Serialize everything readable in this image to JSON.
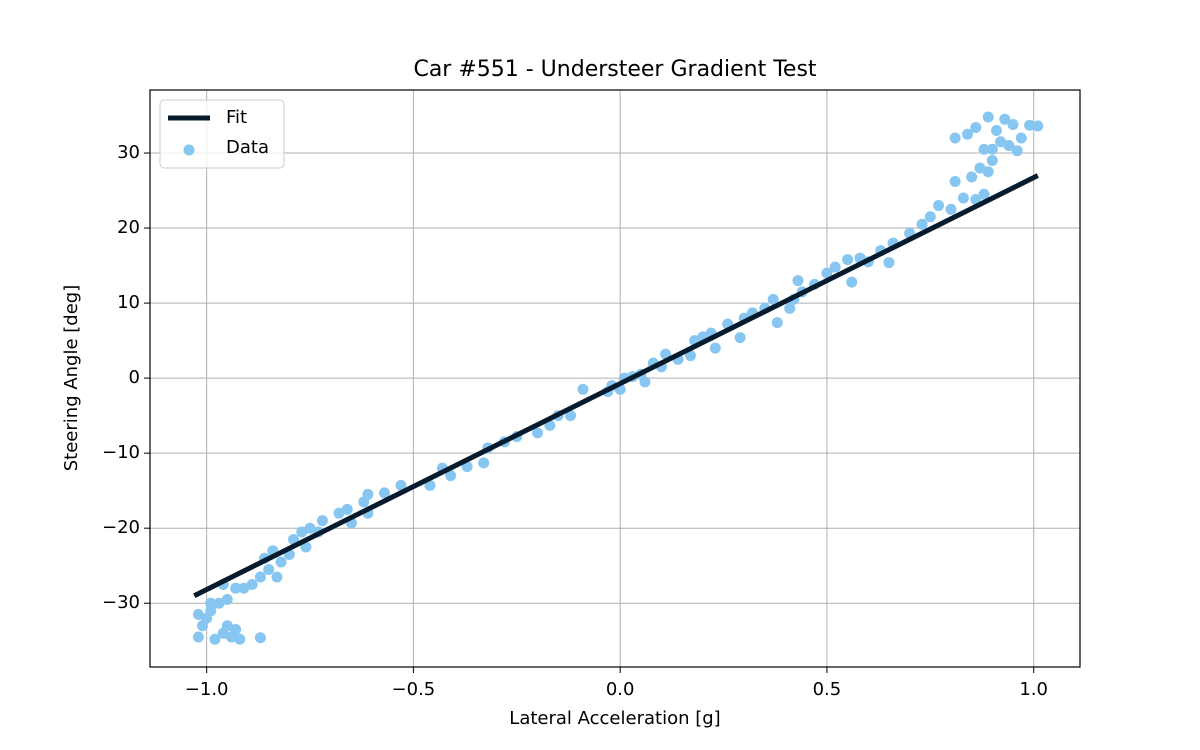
{
  "chart_data": {
    "type": "scatter",
    "title": "Car #551 - Understeer Gradient Test",
    "x_label": "Lateral Acceleration [g]",
    "y_label": "Steering Angle [deg]",
    "xlim": [
      -1.137,
      1.112
    ],
    "ylim": [
      -38.5,
      38.4
    ],
    "xticks": [
      {
        "value": -1.0,
        "label": "−1.0"
      },
      {
        "value": -0.5,
        "label": "−0.5"
      },
      {
        "value": 0,
        "label": "0.0"
      },
      0.5,
      {
        "value": 1.0,
        "label": "1.0"
      }
    ],
    "yticks": [
      {
        "value": -30,
        "label": "−30"
      },
      {
        "value": -20,
        "label": "−20"
      },
      {
        "value": -10,
        "label": "−10"
      },
      0,
      10,
      20,
      30
    ],
    "grid": true,
    "legend": "upper left",
    "series": [
      {
        "name": "Fit",
        "type": "line",
        "color": "#061c2e",
        "x": [
          -1.03,
          1.01
        ],
        "values": [
          -29,
          27
        ]
      },
      {
        "name": "Data",
        "type": "scatter",
        "color": "#87c6f0",
        "x": [
          -1.02,
          -1.01,
          -1.0,
          -0.99,
          -1.02,
          -0.98,
          -0.96,
          -0.95,
          -0.94,
          -0.93,
          -0.92,
          -0.97,
          -0.95,
          -0.93,
          -0.91,
          -0.89,
          -0.87,
          -0.96,
          -0.99,
          -0.87,
          -0.86,
          -0.85,
          -0.84,
          -0.83,
          -0.82,
          -0.8,
          -0.79,
          -0.77,
          -0.76,
          -0.75,
          -0.73,
          -0.72,
          -0.68,
          -0.66,
          -0.65,
          -0.62,
          -0.61,
          -0.61,
          -0.57,
          -0.53,
          -0.46,
          -0.43,
          -0.41,
          -0.37,
          -0.33,
          -0.32,
          -0.28,
          -0.25,
          -0.2,
          -0.17,
          -0.15,
          -0.12,
          -0.09,
          -0.03,
          -0.02,
          0,
          0.01,
          0.03,
          0.05,
          0.06,
          0.08,
          0.1,
          0.11,
          0.14,
          0.17,
          0.18,
          0.2,
          0.22,
          0.23,
          0.26,
          0.29,
          0.3,
          0.32,
          0.35,
          0.37,
          0.38,
          0.41,
          0.42,
          0.43,
          0.44,
          0.47,
          0.5,
          0.52,
          0.55,
          0.56,
          0.58,
          0.6,
          0.63,
          0.65,
          0.66,
          0.7,
          0.73,
          0.75,
          0.77,
          0.8,
          0.81,
          0.83,
          0.85,
          0.86,
          0.87,
          0.88,
          0.89,
          0.9,
          0.81,
          0.84,
          0.86,
          0.88,
          0.89,
          0.91,
          0.92,
          0.93,
          0.95,
          0.96,
          0.97,
          0.99,
          1.01,
          0.94,
          0.9
        ],
        "values": [
          -34.5,
          -33,
          -32,
          -31,
          -31.5,
          -34.8,
          -34,
          -33,
          -34.5,
          -33.5,
          -34.8,
          -30,
          -29.5,
          -28,
          -28,
          -27.5,
          -34.6,
          -27.5,
          -30,
          -26.5,
          -24,
          -25.5,
          -23,
          -26.5,
          -24.5,
          -23.5,
          -21.5,
          -20.5,
          -22.5,
          -20,
          -20.5,
          -19,
          -18,
          -17.5,
          -19.3,
          -16.5,
          -15.5,
          -18,
          -15.3,
          -14.3,
          -14.3,
          -12,
          -13,
          -11.8,
          -11.3,
          -9.3,
          -8.5,
          -7.8,
          -7.3,
          -6.3,
          -5,
          -5,
          -1.5,
          -1.8,
          -1,
          -1.5,
          0,
          0.2,
          0.5,
          -0.5,
          2,
          1.5,
          3.2,
          2.5,
          3,
          5,
          5.5,
          6,
          4,
          7.2,
          5.4,
          8,
          8.7,
          9.3,
          10.5,
          7.4,
          9.3,
          10.5,
          13,
          11.5,
          12.5,
          14,
          14.8,
          15.8,
          12.8,
          16,
          15.5,
          17,
          15.4,
          18,
          19.3,
          20.5,
          21.5,
          23,
          22.5,
          26.2,
          24,
          26.8,
          23.8,
          28,
          24.5,
          27.5,
          30.5,
          32,
          32.5,
          33.4,
          30.5,
          34.8,
          33,
          31.5,
          34.5,
          33.8,
          30.3,
          32,
          33.7,
          33.6,
          31,
          29
        ]
      }
    ]
  }
}
